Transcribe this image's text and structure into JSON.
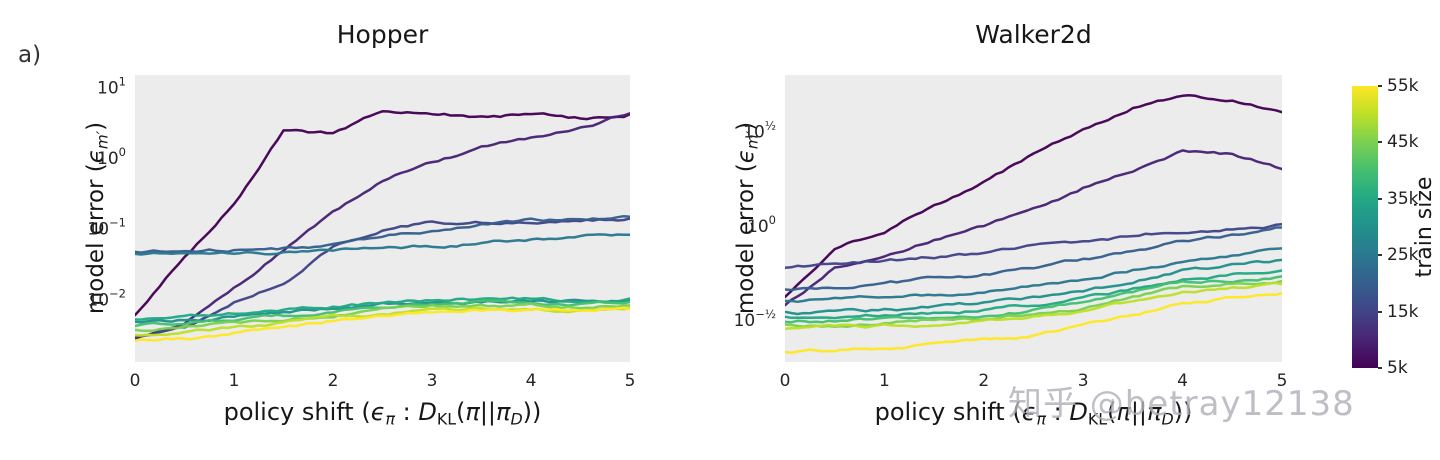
{
  "figure": {
    "panel_label": "a)",
    "watermark": "知乎 @betray12138",
    "background": "#ffffff",
    "plot_background": "#ececec"
  },
  "colorbar": {
    "label": "train size",
    "min": 5,
    "max": 55,
    "tick_values": [
      55,
      45,
      35,
      25,
      15,
      5
    ],
    "tick_labels": [
      "55k",
      "45k",
      "35k",
      "25k",
      "15k",
      "5k"
    ],
    "colors_bottom_to_top": [
      "#440154",
      "#482475",
      "#414487",
      "#355f8d",
      "#2a788e",
      "#21918c",
      "#22a884",
      "#44bf70",
      "#7ad151",
      "#bddf26",
      "#fde725"
    ]
  },
  "chart_data": [
    {
      "type": "line",
      "title": "Hopper",
      "xlabel_parts": [
        {
          "t": "policy shift ("
        },
        {
          "t": "ϵ",
          "style": "it"
        },
        {
          "t": "π",
          "style": "sub"
        },
        {
          "t": " : "
        },
        {
          "t": "D",
          "style": "it"
        },
        {
          "t": "KL",
          "style": "subrm"
        },
        {
          "t": "("
        },
        {
          "t": "π",
          "style": "it"
        },
        {
          "t": "||"
        },
        {
          "t": "π",
          "style": "it"
        },
        {
          "t": "D",
          "style": "sub"
        },
        {
          "t": "))"
        }
      ],
      "ylabel_parts": [
        {
          "t": "model error  ("
        },
        {
          "t": "ϵ",
          "style": "it"
        },
        {
          "t": "m′",
          "style": "sub"
        },
        {
          "t": ")"
        }
      ],
      "xlim": [
        0,
        5
      ],
      "ylim": [
        0.0013,
        15
      ],
      "yscale": "log",
      "grid": false,
      "x_ticks": [
        0,
        1,
        2,
        3,
        4,
        5
      ],
      "y_ticks": [
        {
          "base": "10",
          "exp": "1",
          "value": 10
        },
        {
          "base": "10",
          "exp": "0",
          "value": 1
        },
        {
          "base": "10",
          "exp": "−1",
          "value": 0.1
        },
        {
          "base": "10",
          "exp": "−2",
          "value": 0.01
        }
      ],
      "x": [
        0,
        0.5,
        1,
        1.5,
        2,
        2.5,
        3,
        3.5,
        4,
        4.5,
        5
      ],
      "series": [
        {
          "name": "5k",
          "color": "#440154",
          "values": [
            0.006,
            0.04,
            0.22,
            2.4,
            2.2,
            4.8,
            4.3,
            3.8,
            4.2,
            3.6,
            4.2
          ]
        },
        {
          "name": "10k",
          "color": "#482475",
          "values": [
            0.0028,
            0.0045,
            0.014,
            0.05,
            0.17,
            0.5,
            0.9,
            1.4,
            1.9,
            2.9,
            4.3
          ]
        },
        {
          "name": "15k",
          "color": "#414487",
          "values": [
            0.003,
            0.004,
            0.009,
            0.018,
            0.055,
            0.1,
            0.12,
            0.125,
            0.13,
            0.135,
            0.14
          ]
        },
        {
          "name": "20k",
          "color": "#355f8d",
          "values": [
            0.047,
            0.048,
            0.05,
            0.053,
            0.06,
            0.075,
            0.095,
            0.115,
            0.13,
            0.14,
            0.148
          ]
        },
        {
          "name": "25k",
          "color": "#2a788e",
          "values": [
            0.044,
            0.044,
            0.045,
            0.047,
            0.049,
            0.052,
            0.057,
            0.063,
            0.07,
            0.076,
            0.082
          ]
        },
        {
          "name": "30k",
          "color": "#21918c",
          "values": [
            0.0048,
            0.0052,
            0.0058,
            0.0065,
            0.0075,
            0.0085,
            0.0092,
            0.0095,
            0.0095,
            0.0092,
            0.0096
          ]
        },
        {
          "name": "35k",
          "color": "#22a884",
          "values": [
            0.0052,
            0.0057,
            0.0063,
            0.007,
            0.008,
            0.009,
            0.0098,
            0.0102,
            0.0101,
            0.0097,
            0.0103
          ]
        },
        {
          "name": "40k",
          "color": "#44bf70",
          "values": [
            0.0042,
            0.0046,
            0.0052,
            0.0058,
            0.0068,
            0.0078,
            0.0086,
            0.009,
            0.0089,
            0.0086,
            0.0092
          ]
        },
        {
          "name": "45k",
          "color": "#7ad151",
          "values": [
            0.0037,
            0.004,
            0.0046,
            0.0052,
            0.0061,
            0.007,
            0.0078,
            0.0081,
            0.008,
            0.0077,
            0.0082
          ]
        },
        {
          "name": "50k",
          "color": "#bddf26",
          "values": [
            0.0031,
            0.0034,
            0.0039,
            0.0045,
            0.0054,
            0.0063,
            0.0072,
            0.0074,
            0.0074,
            0.0071,
            0.0077
          ]
        },
        {
          "name": "55k",
          "color": "#fde725",
          "values": [
            0.0026,
            0.0028,
            0.0033,
            0.0039,
            0.0048,
            0.0058,
            0.0068,
            0.007,
            0.007,
            0.0066,
            0.0073
          ]
        }
      ]
    },
    {
      "type": "line",
      "title": "Walker2d",
      "xlabel_parts": [
        {
          "t": "policy shift ("
        },
        {
          "t": "ϵ",
          "style": "it"
        },
        {
          "t": "π",
          "style": "sub"
        },
        {
          "t": " : "
        },
        {
          "t": "D",
          "style": "it"
        },
        {
          "t": "KL",
          "style": "subrm"
        },
        {
          "t": "("
        },
        {
          "t": "π",
          "style": "it"
        },
        {
          "t": "||"
        },
        {
          "t": "π",
          "style": "it"
        },
        {
          "t": "D",
          "style": "sub"
        },
        {
          "t": "))"
        }
      ],
      "ylabel_parts": [
        {
          "t": "model error  ("
        },
        {
          "t": "ϵ",
          "style": "it"
        },
        {
          "t": "m′",
          "style": "sub"
        },
        {
          "t": ")"
        }
      ],
      "xlim": [
        0,
        5
      ],
      "ylim": [
        0.19,
        6.3
      ],
      "yscale": "log",
      "grid": false,
      "x_ticks": [
        0,
        1,
        2,
        3,
        4,
        5
      ],
      "y_ticks": [
        {
          "base": "10",
          "exp": "½",
          "value": 3.1623
        },
        {
          "base": "10",
          "exp": "0",
          "value": 1
        },
        {
          "base": "10",
          "exp": "−½",
          "value": 0.31623
        }
      ],
      "x": [
        0,
        0.5,
        1,
        1.5,
        2,
        2.5,
        3,
        3.5,
        4,
        4.5,
        5
      ],
      "series": [
        {
          "name": "5k",
          "color": "#440154",
          "values": [
            0.42,
            0.78,
            0.95,
            1.3,
            1.7,
            2.4,
            3.2,
            4.3,
            4.9,
            4.6,
            4.0
          ]
        },
        {
          "name": "10k",
          "color": "#482475",
          "values": [
            0.38,
            0.6,
            0.7,
            0.85,
            1.0,
            1.25,
            1.6,
            2.0,
            2.5,
            2.4,
            2.0
          ]
        },
        {
          "name": "15k",
          "color": "#414487",
          "values": [
            0.6,
            0.62,
            0.65,
            0.68,
            0.72,
            0.77,
            0.83,
            0.89,
            0.95,
            0.98,
            1.02
          ]
        },
        {
          "name": "20k",
          "color": "#355f8d",
          "values": [
            0.46,
            0.47,
            0.49,
            0.52,
            0.55,
            0.6,
            0.66,
            0.73,
            0.82,
            0.9,
            0.98
          ]
        },
        {
          "name": "25k",
          "color": "#2a788e",
          "values": [
            0.4,
            0.405,
            0.41,
            0.43,
            0.45,
            0.48,
            0.52,
            0.58,
            0.65,
            0.7,
            0.76
          ]
        },
        {
          "name": "30k",
          "color": "#21918c",
          "values": [
            0.35,
            0.35,
            0.36,
            0.37,
            0.39,
            0.41,
            0.44,
            0.5,
            0.58,
            0.62,
            0.66
          ]
        },
        {
          "name": "35k",
          "color": "#22a884",
          "values": [
            0.33,
            0.33,
            0.34,
            0.35,
            0.36,
            0.38,
            0.41,
            0.46,
            0.53,
            0.56,
            0.58
          ]
        },
        {
          "name": "40k",
          "color": "#44bf70",
          "values": [
            0.31,
            0.315,
            0.32,
            0.33,
            0.34,
            0.36,
            0.39,
            0.44,
            0.5,
            0.52,
            0.54
          ]
        },
        {
          "name": "45k",
          "color": "#7ad151",
          "values": [
            0.3,
            0.3,
            0.305,
            0.315,
            0.325,
            0.34,
            0.37,
            0.42,
            0.47,
            0.49,
            0.51
          ]
        },
        {
          "name": "50k",
          "color": "#bddf26",
          "values": [
            0.285,
            0.29,
            0.295,
            0.3,
            0.31,
            0.33,
            0.36,
            0.4,
            0.45,
            0.47,
            0.49
          ]
        },
        {
          "name": "55k",
          "color": "#fde725",
          "values": [
            0.215,
            0.22,
            0.225,
            0.235,
            0.245,
            0.26,
            0.29,
            0.33,
            0.39,
            0.42,
            0.44
          ]
        }
      ]
    }
  ]
}
